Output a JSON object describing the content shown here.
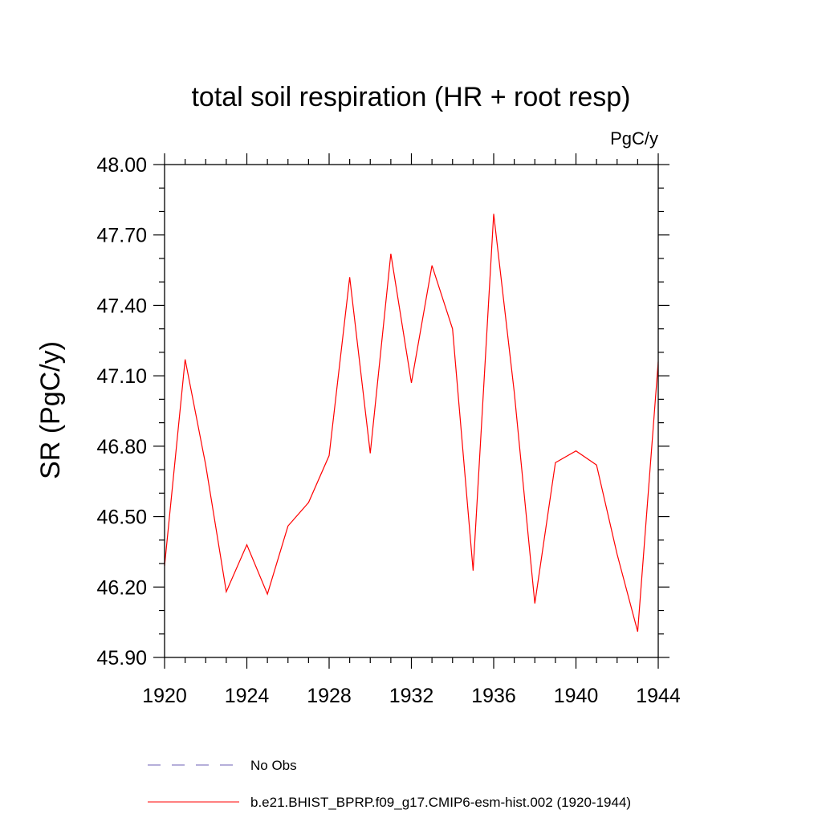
{
  "chart_data": {
    "type": "line",
    "title": "total soil respiration (HR + root resp)",
    "units": "PgC/y",
    "ylabel": "SR  (PgC/y)",
    "xlabel": "",
    "xlim": [
      1920,
      1944
    ],
    "ylim": [
      45.9,
      48.0
    ],
    "x_ticks": [
      1920,
      1924,
      1928,
      1932,
      1936,
      1940,
      1944
    ],
    "x_tick_labels": [
      "1920",
      "1924",
      "1928",
      "1932",
      "1936",
      "1940",
      "1944"
    ],
    "y_ticks": [
      45.9,
      46.2,
      46.5,
      46.8,
      47.1,
      47.4,
      47.7,
      48.0
    ],
    "y_tick_labels": [
      "45.90",
      "46.20",
      "46.50",
      "46.80",
      "47.10",
      "47.40",
      "47.70",
      "48.00"
    ],
    "grid": false,
    "legend_position": "bottom",
    "x": [
      1920,
      1921,
      1922,
      1923,
      1924,
      1925,
      1926,
      1927,
      1928,
      1929,
      1930,
      1931,
      1932,
      1933,
      1934,
      1935,
      1936,
      1937,
      1938,
      1939,
      1940,
      1941,
      1942,
      1943,
      1944
    ],
    "series": [
      {
        "name": "b.e21.BHIST_BPRP.f09_g17.CMIP6-esm-hist.002 (1920-1944)",
        "color": "#ff0000",
        "style": "solid",
        "values": [
          46.29,
          47.17,
          46.72,
          46.18,
          46.38,
          46.17,
          46.46,
          46.56,
          46.76,
          47.52,
          46.77,
          47.62,
          47.07,
          47.57,
          47.3,
          46.27,
          47.79,
          47.03,
          46.13,
          46.73,
          46.78,
          46.72,
          46.34,
          46.01,
          47.16
        ]
      }
    ],
    "legend": [
      {
        "label": "No Obs",
        "color": "#6b5fb5",
        "style": "dashed"
      },
      {
        "label": "b.e21.BHIST_BPRP.f09_g17.CMIP6-esm-hist.002 (1920-1944)",
        "color": "#ff0000",
        "style": "solid"
      }
    ]
  }
}
